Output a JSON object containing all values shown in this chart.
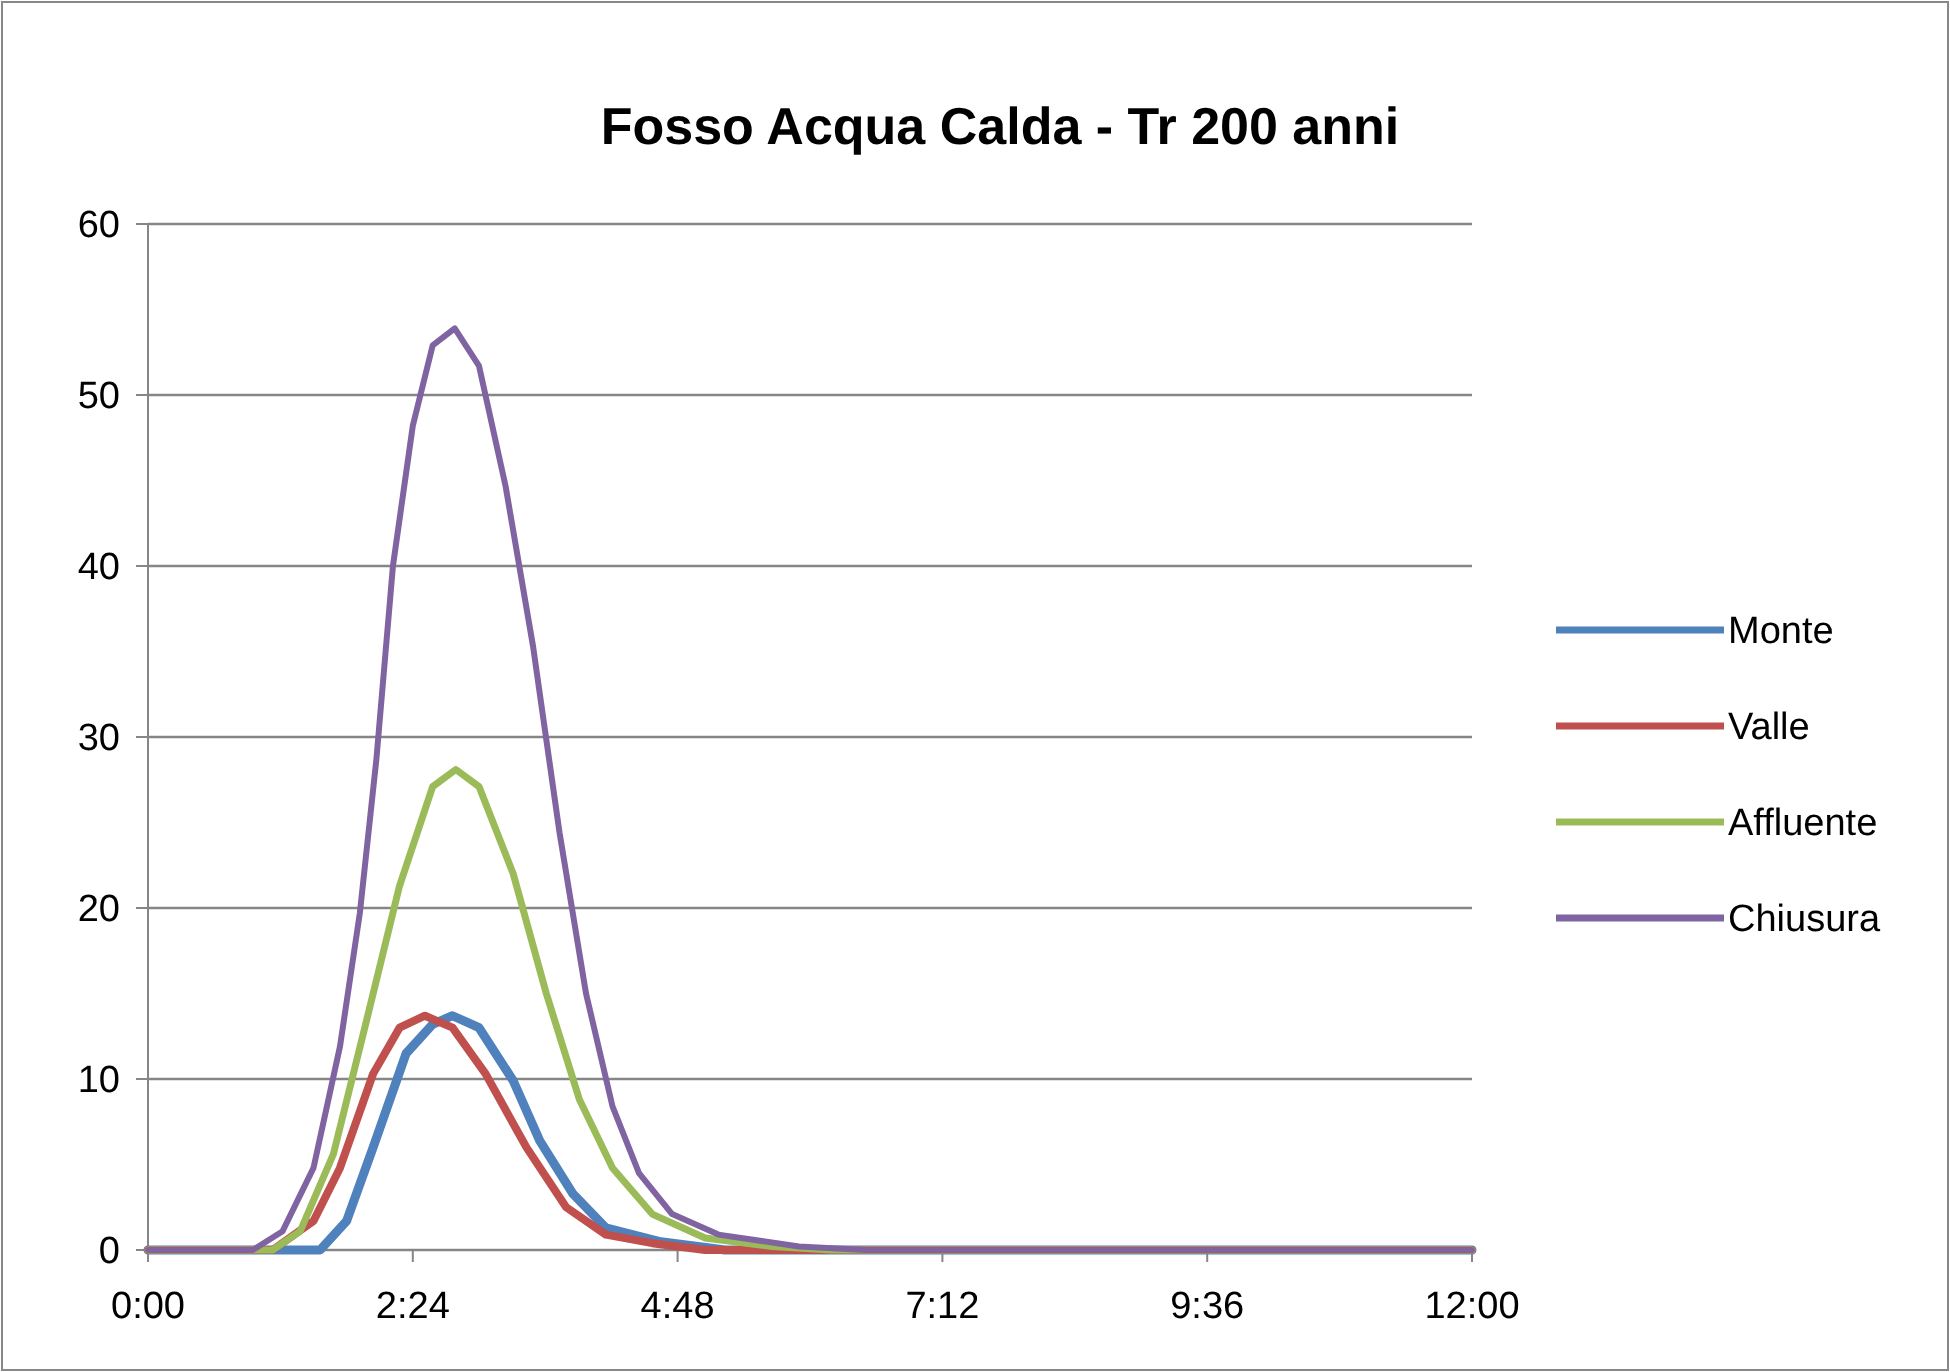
{
  "chart_data": {
    "type": "line",
    "title": "Fosso Acqua Calda - Tr 200 anni",
    "xlim": [
      0,
      12
    ],
    "xticks": [
      {
        "value": 0,
        "label": "0:00"
      },
      {
        "value": 2.4,
        "label": "2:24"
      },
      {
        "value": 4.8,
        "label": "4:48"
      },
      {
        "value": 7.2,
        "label": "7:12"
      },
      {
        "value": 9.6,
        "label": "9:36"
      },
      {
        "value": 12,
        "label": "12:00"
      }
    ],
    "ylim": [
      0,
      60
    ],
    "yticks": [
      0,
      10,
      20,
      30,
      40,
      50,
      60
    ],
    "grid": "y",
    "legend": "right",
    "marker": "none",
    "line_style": "solid",
    "series": [
      {
        "name": "Monte",
        "color": "#4f81bd",
        "x": [
          0,
          1.56,
          1.8,
          2.04,
          2.34,
          2.58,
          2.76,
          3,
          3.31,
          3.55,
          3.85,
          4.15,
          4.63,
          5.23,
          12
        ],
        "values": [
          0,
          0,
          1.7,
          6,
          11.5,
          13.2,
          13.7,
          13,
          9.9,
          6.4,
          3.3,
          1.3,
          0.5,
          0,
          0
        ]
      },
      {
        "name": "Valle",
        "color": "#c0504d",
        "x": [
          0,
          1.13,
          1.5,
          1.74,
          2.04,
          2.28,
          2.51,
          2.76,
          3.06,
          3.43,
          3.79,
          4.15,
          4.57,
          5.05,
          12
        ],
        "values": [
          0,
          0,
          1.7,
          4.8,
          10.3,
          13,
          13.7,
          13,
          10.3,
          6,
          2.5,
          0.9,
          0.4,
          0,
          0
        ]
      },
      {
        "name": "Affluente",
        "color": "#9bbb59",
        "x": [
          0,
          1.13,
          1.38,
          1.68,
          1.98,
          2.28,
          2.58,
          2.79,
          3,
          3.31,
          3.61,
          3.91,
          4.21,
          4.57,
          5.05,
          5.66,
          6.2,
          12
        ],
        "values": [
          0,
          0,
          1.1,
          5.6,
          13.4,
          21.3,
          27.1,
          28.1,
          27.1,
          22,
          15,
          8.8,
          4.8,
          2.1,
          0.7,
          0.2,
          0,
          0
        ]
      },
      {
        "name": "Chiusura",
        "color": "#8064a2",
        "x": [
          0,
          0.95,
          1.22,
          1.5,
          1.74,
          1.92,
          2.07,
          2.22,
          2.4,
          2.58,
          2.78,
          3,
          3.24,
          3.49,
          3.73,
          3.97,
          4.21,
          4.45,
          4.75,
          5.17,
          5.9,
          6.5,
          12
        ],
        "values": [
          0,
          0,
          1.1,
          4.8,
          11.9,
          19.7,
          28.7,
          40,
          48.2,
          52.9,
          53.9,
          51.7,
          44.7,
          35.3,
          24.4,
          15,
          8.4,
          4.5,
          2.1,
          0.9,
          0.2,
          0,
          0
        ]
      }
    ]
  }
}
